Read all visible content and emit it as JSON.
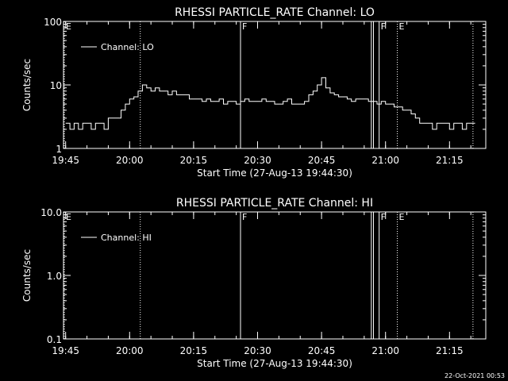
{
  "chart_data": [
    {
      "type": "line",
      "title": "RHESSI PARTICLE_RATE Channel: LO",
      "xlabel": "Start Time (27-Aug-13 19:44:30)",
      "ylabel": "Counts/sec",
      "y_scale": "log",
      "ylim": [
        1,
        100
      ],
      "y_ticks": [
        1,
        10,
        100
      ],
      "y_tick_labels": [
        "1",
        "10",
        "100"
      ],
      "xlim": [
        "19:44:30",
        "21:23:30"
      ],
      "x_ticks": [
        "19:45",
        "20:00",
        "20:15",
        "20:30",
        "20:45",
        "21:00",
        "21:15"
      ],
      "legend_position": "top-left",
      "series": [
        {
          "name": "Channel: LO",
          "x": [
            "19:45",
            "19:46",
            "19:47",
            "19:48",
            "19:49",
            "19:50",
            "19:51",
            "19:52",
            "19:53",
            "19:54",
            "19:55",
            "19:56",
            "19:57",
            "19:58",
            "19:59",
            "20:00",
            "20:01",
            "20:02",
            "20:03",
            "20:04",
            "20:05",
            "20:06",
            "20:07",
            "20:08",
            "20:09",
            "20:10",
            "20:11",
            "20:12",
            "20:13",
            "20:14",
            "20:15",
            "20:16",
            "20:17",
            "20:18",
            "20:19",
            "20:20",
            "20:21",
            "20:22",
            "20:23",
            "20:24",
            "20:25",
            "20:26",
            "20:27",
            "20:28",
            "20:29",
            "20:30",
            "20:31",
            "20:32",
            "20:33",
            "20:34",
            "20:35",
            "20:36",
            "20:37",
            "20:38",
            "20:39",
            "20:40",
            "20:41",
            "20:42",
            "20:43",
            "20:44",
            "20:45",
            "20:46",
            "20:47",
            "20:48",
            "20:49",
            "20:50",
            "20:51",
            "20:52",
            "20:53",
            "20:54",
            "20:55",
            "20:56",
            "20:57",
            "20:58",
            "20:59",
            "21:00",
            "21:01",
            "21:02",
            "21:03",
            "21:04",
            "21:05",
            "21:06",
            "21:07",
            "21:08",
            "21:09",
            "21:10",
            "21:11",
            "21:12",
            "21:13",
            "21:14",
            "21:15",
            "21:16",
            "21:17",
            "21:18",
            "21:19",
            "21:20"
          ],
          "values": [
            2.5,
            2,
            2.5,
            2,
            2.5,
            2.5,
            2,
            2.5,
            2.5,
            2,
            3,
            3,
            3,
            4,
            5,
            6,
            6.5,
            8,
            10,
            9,
            8,
            9,
            8,
            8,
            7,
            8,
            7,
            7,
            7,
            6,
            6,
            6,
            5.5,
            6,
            5.5,
            5.5,
            6,
            5,
            5.5,
            5.5,
            5,
            5.5,
            6,
            5.5,
            5.5,
            5.5,
            6,
            5.5,
            5.5,
            5,
            5,
            5.5,
            6,
            5,
            5,
            5,
            5.5,
            7,
            8,
            10,
            13,
            9,
            7.5,
            7,
            6.5,
            6.5,
            6,
            5.5,
            6,
            6,
            6,
            5.5,
            5.5,
            5,
            5.5,
            5,
            5,
            4.5,
            4.5,
            4,
            4,
            3.5,
            3,
            2.5,
            2.5,
            2.5,
            2,
            2.5,
            2.5,
            2.5,
            2,
            2.5,
            2.5,
            2,
            2.5,
            2.5
          ]
        }
      ],
      "markers": [
        {
          "label": "E",
          "time": "19:44:30",
          "style": "dotted"
        },
        {
          "label": "",
          "time": "20:02:30",
          "style": "dotted"
        },
        {
          "label": "F",
          "time": "20:26:00",
          "style": "solid"
        },
        {
          "label": "",
          "time": "20:56:40",
          "style": "solid"
        },
        {
          "label": "",
          "time": "20:57:10",
          "style": "solid"
        },
        {
          "label": "F",
          "time": "20:58:30",
          "style": "solid"
        },
        {
          "label": "E",
          "time": "21:02:45",
          "style": "dotted"
        },
        {
          "label": "",
          "time": "21:20:30",
          "style": "dotted"
        }
      ]
    },
    {
      "type": "line",
      "title": "RHESSI PARTICLE_RATE Channel: HI",
      "xlabel": "Start Time (27-Aug-13 19:44:30)",
      "ylabel": "Counts/sec",
      "y_scale": "log",
      "ylim": [
        0.1,
        10
      ],
      "y_ticks": [
        0.1,
        1,
        10
      ],
      "y_tick_labels": [
        "0.1",
        "1.0",
        "10.0"
      ],
      "xlim": [
        "19:44:30",
        "21:23:30"
      ],
      "x_ticks": [
        "19:45",
        "20:00",
        "20:15",
        "20:30",
        "20:45",
        "21:00",
        "21:15"
      ],
      "legend_position": "top-left",
      "series": [
        {
          "name": "Channel: HI",
          "x": [],
          "values": []
        }
      ],
      "markers": [
        {
          "label": "E",
          "time": "19:44:30",
          "style": "dotted"
        },
        {
          "label": "",
          "time": "20:02:30",
          "style": "dotted"
        },
        {
          "label": "F",
          "time": "20:26:00",
          "style": "solid"
        },
        {
          "label": "",
          "time": "20:56:40",
          "style": "solid"
        },
        {
          "label": "",
          "time": "20:57:10",
          "style": "solid"
        },
        {
          "label": "F",
          "time": "20:58:30",
          "style": "solid"
        },
        {
          "label": "E",
          "time": "21:02:45",
          "style": "dotted"
        },
        {
          "label": "",
          "time": "21:20:30",
          "style": "dotted"
        }
      ]
    }
  ],
  "footer": {
    "timestamp": "22-Oct-2021 00:53"
  },
  "colors": {
    "background": "#000000",
    "foreground": "#ffffff"
  }
}
